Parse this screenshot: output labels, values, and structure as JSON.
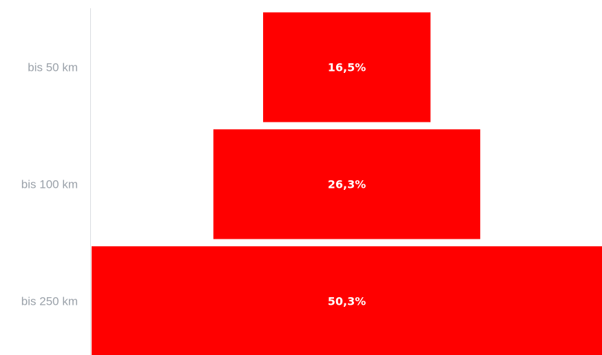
{
  "chart_data": {
    "type": "bar",
    "orientation": "horizontal-centered",
    "categories": [
      "bis 50 km",
      "bis 100 km",
      "bis 250 km"
    ],
    "values": [
      16.5,
      26.3,
      50.3
    ],
    "data_labels": [
      "16,5%",
      "26,3%",
      "50,3%"
    ],
    "xlim": [
      0,
      50.3
    ],
    "grid": false,
    "legend": "none",
    "bar_color": "#ff0000",
    "label_color": "#9aa1a9",
    "axis_color": "#d9dce0"
  }
}
